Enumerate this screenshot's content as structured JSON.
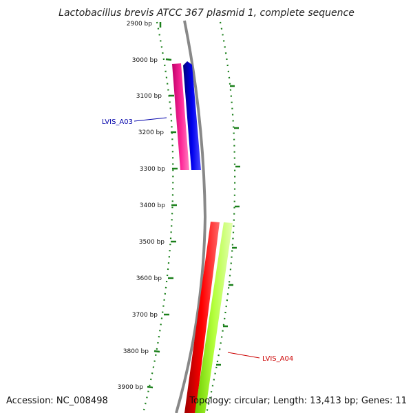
{
  "title": "Lactobacillus brevis ATCC 367 plasmid 1, complete sequence",
  "accession": "Accession: NC_008498",
  "topology": "Topology: circular; Length: 13,413 bp; Genes: 11",
  "ticks": [
    "2900 bp",
    "3000 bp",
    "3100 bp",
    "3200 bp",
    "3300 bp",
    "3400 bp",
    "3500 bp",
    "3600 bp",
    "3700 bp",
    "3800 bp",
    "3900 bp"
  ],
  "genes": [
    {
      "name": "LVIS_A03",
      "strand": "forward",
      "cds_color": "#0000ee",
      "gene_color": "#ff2a9a",
      "label_color": "#0000aa"
    },
    {
      "name": "LVIS_A04",
      "strand": "reverse",
      "cds_color": "#ee0000",
      "gene_color": "#a8ff30",
      "label_color": "#cc0000"
    }
  ],
  "colors": {
    "backbone": "#888888",
    "tick": "#1a7f1a"
  }
}
